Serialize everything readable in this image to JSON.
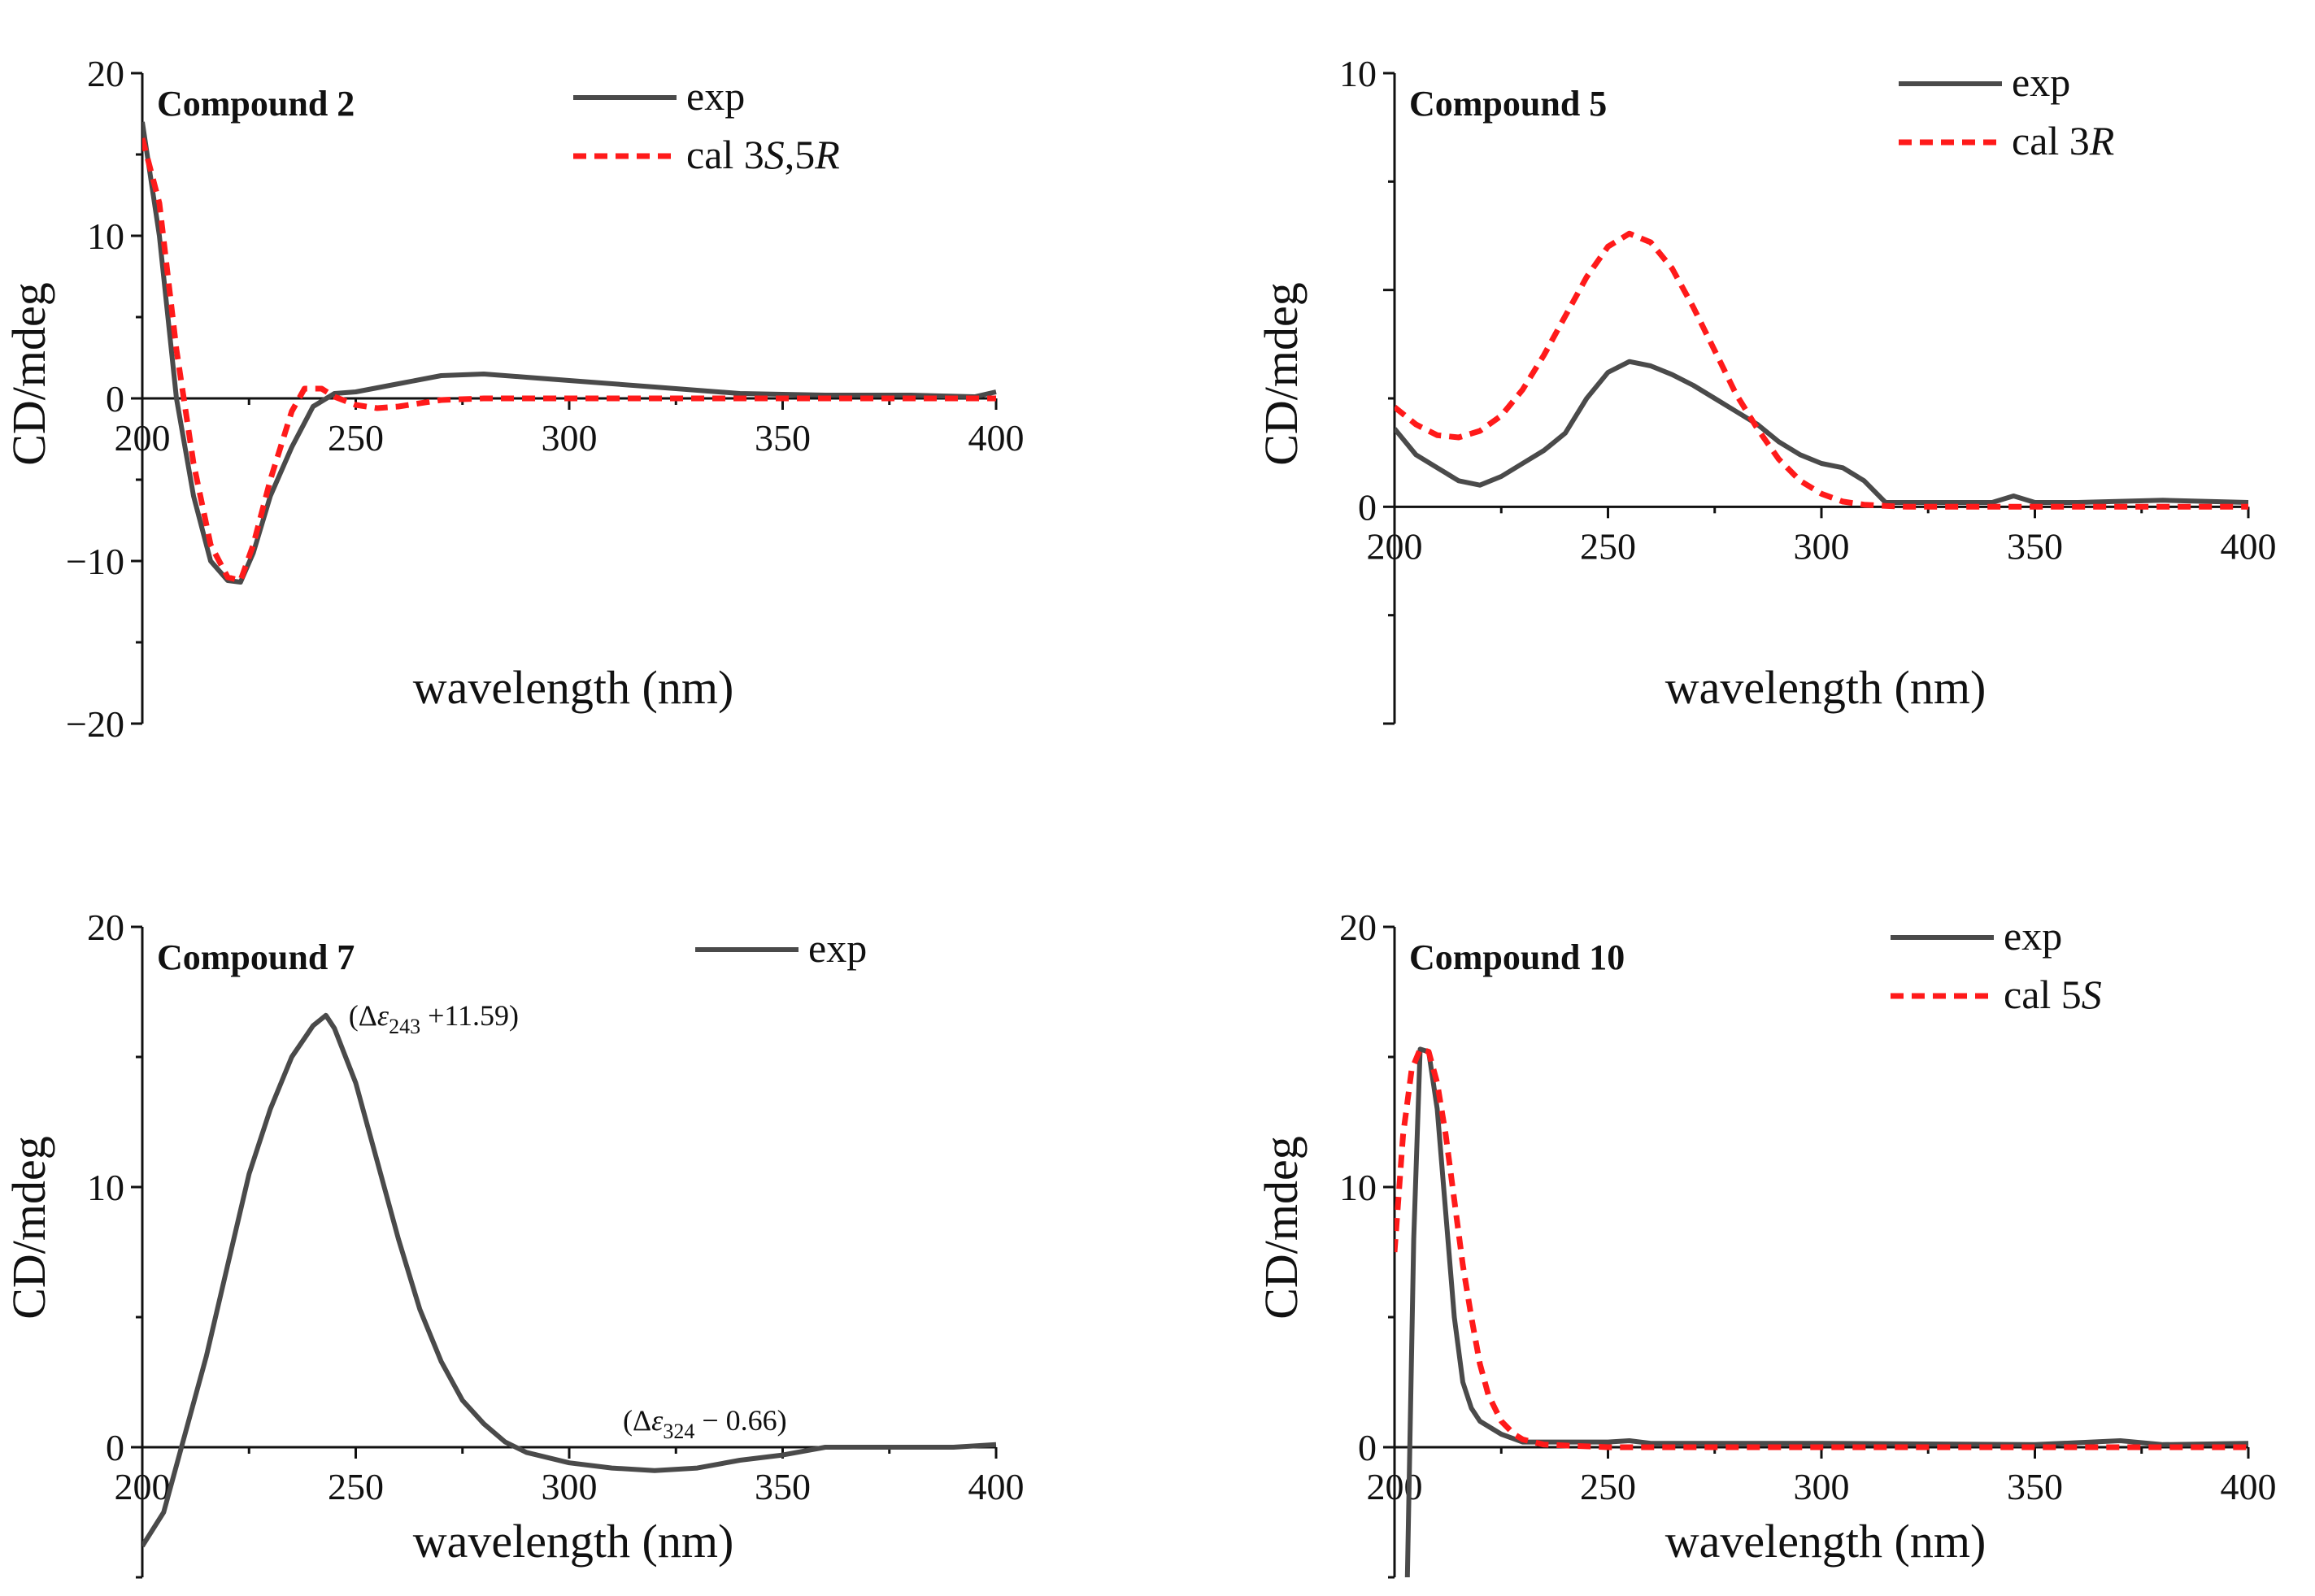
{
  "colors": {
    "exp": "#4a4a4a",
    "cal": "#ff1a1a",
    "axis": "#111111"
  },
  "chart_data": [
    {
      "type": "line",
      "title": "Compound 2",
      "xlabel": "wavelength (nm)",
      "ylabel": "CD/mdeg",
      "xlim": [
        200,
        400
      ],
      "ylim": [
        -20,
        20
      ],
      "xticks": [
        "200",
        "250",
        "300",
        "350",
        "400"
      ],
      "yticks": [
        "20",
        "10",
        "0",
        "−10",
        "−20"
      ],
      "legend": [
        {
          "style": "solid",
          "prefix": "exp",
          "italic_parts": []
        },
        {
          "style": "dashed",
          "prefix": "cal 3",
          "parts": [
            "S",
            ",5",
            "R"
          ]
        }
      ],
      "series": [
        {
          "name": "exp",
          "style": "solid",
          "x": [
            200,
            204,
            208,
            212,
            216,
            220,
            223,
            226,
            230,
            235,
            240,
            245,
            250,
            260,
            270,
            280,
            290,
            300,
            320,
            340,
            360,
            380,
            395,
            400
          ],
          "y": [
            17,
            10,
            0,
            -6,
            -10,
            -11.2,
            -11.3,
            -9.5,
            -6,
            -3,
            -0.5,
            0.3,
            0.4,
            0.9,
            1.4,
            1.5,
            1.3,
            1.1,
            0.7,
            0.3,
            0.2,
            0.2,
            0.1,
            0.4
          ]
        },
        {
          "name": "cal 3S,5R",
          "style": "dashed",
          "x": [
            200,
            204,
            208,
            212,
            216,
            220,
            223,
            226,
            230,
            235,
            238,
            242,
            245,
            250,
            255,
            260,
            270,
            280,
            300,
            350,
            400
          ],
          "y": [
            16,
            12,
            3,
            -4,
            -9,
            -11,
            -11.2,
            -9,
            -5,
            -0.8,
            0.6,
            0.6,
            0.1,
            -0.4,
            -0.6,
            -0.5,
            -0.1,
            0,
            0,
            0,
            0
          ]
        }
      ],
      "annotations": []
    },
    {
      "type": "line",
      "title": "Compound 5",
      "xlabel": "wavelength (nm)",
      "ylabel": "CD/mdeg",
      "xlim": [
        200,
        400
      ],
      "ylim": [
        -5,
        10
      ],
      "xticks": [
        "200",
        "250",
        "300",
        "350",
        "400"
      ],
      "yticks": [
        "10",
        "0"
      ],
      "legend": [
        {
          "style": "solid",
          "prefix": "exp",
          "italic_parts": []
        },
        {
          "style": "dashed",
          "prefix": "cal 3",
          "parts": [
            "R"
          ]
        }
      ],
      "series": [
        {
          "name": "exp",
          "style": "solid",
          "x": [
            200,
            205,
            210,
            215,
            220,
            225,
            230,
            235,
            240,
            245,
            250,
            255,
            260,
            265,
            270,
            275,
            280,
            285,
            290,
            295,
            300,
            305,
            310,
            315,
            320,
            330,
            340,
            345,
            350,
            360,
            380,
            400
          ],
          "y": [
            1.8,
            1.2,
            0.9,
            0.6,
            0.5,
            0.7,
            1.0,
            1.3,
            1.7,
            2.5,
            3.1,
            3.35,
            3.25,
            3.05,
            2.8,
            2.5,
            2.2,
            1.9,
            1.5,
            1.2,
            1.0,
            0.9,
            0.6,
            0.1,
            0.1,
            0.1,
            0.1,
            0.25,
            0.1,
            0.1,
            0.15,
            0.1
          ]
        },
        {
          "name": "cal 3R",
          "style": "dashed",
          "x": [
            200,
            205,
            210,
            215,
            220,
            225,
            230,
            235,
            240,
            245,
            250,
            255,
            260,
            265,
            270,
            275,
            280,
            285,
            290,
            295,
            300,
            305,
            310,
            315,
            320,
            340,
            360,
            400
          ],
          "y": [
            2.3,
            1.9,
            1.65,
            1.6,
            1.75,
            2.1,
            2.7,
            3.5,
            4.4,
            5.3,
            6.0,
            6.3,
            6.1,
            5.5,
            4.6,
            3.6,
            2.6,
            1.8,
            1.1,
            0.6,
            0.3,
            0.12,
            0.05,
            0.02,
            0,
            0,
            0,
            0
          ]
        }
      ],
      "annotations": []
    },
    {
      "type": "line",
      "title": "Compound 7",
      "xlabel": "wavelength (nm)",
      "ylabel": "CD/mdeg",
      "xlim": [
        200,
        400
      ],
      "ylim": [
        -5,
        20
      ],
      "xticks": [
        "200",
        "250",
        "300",
        "350",
        "400"
      ],
      "yticks": [
        "20",
        "10",
        "0"
      ],
      "legend": [
        {
          "style": "solid",
          "prefix": "exp",
          "italic_parts": []
        }
      ],
      "series": [
        {
          "name": "exp",
          "style": "solid",
          "x": [
            200,
            205,
            210,
            215,
            220,
            225,
            230,
            235,
            240,
            243,
            245,
            250,
            255,
            260,
            265,
            270,
            275,
            280,
            285,
            290,
            300,
            310,
            320,
            330,
            340,
            350,
            360,
            370,
            380,
            390,
            400
          ],
          "y": [
            -3.8,
            -2.5,
            0.5,
            3.5,
            7,
            10.5,
            13,
            15,
            16.2,
            16.6,
            16.1,
            14,
            11,
            8,
            5.3,
            3.3,
            1.8,
            0.9,
            0.2,
            -0.2,
            -0.6,
            -0.8,
            -0.9,
            -0.8,
            -0.5,
            -0.3,
            0,
            0,
            0,
            0,
            0.1
          ]
        }
      ],
      "annotations": [
        {
          "pre": "(Δ",
          "sym": "ε",
          "sub": "243",
          "post": " +11.59)",
          "x": 243,
          "y": 16.6,
          "anchor": "peak"
        },
        {
          "pre": "(Δ",
          "sym": "ε",
          "sub": "324",
          "post": " − 0.66)",
          "x": 324,
          "y": -0.9,
          "anchor": "trough"
        }
      ]
    },
    {
      "type": "line",
      "title": "Compound 10",
      "xlabel": "wavelength (nm)",
      "ylabel": "CD/mdeg",
      "xlim": [
        200,
        400
      ],
      "ylim": [
        -5,
        20
      ],
      "xticks": [
        "200",
        "250",
        "300",
        "350",
        "400"
      ],
      "yticks": [
        "20",
        "10",
        "0"
      ],
      "legend": [
        {
          "style": "solid",
          "prefix": "exp",
          "italic_parts": []
        },
        {
          "style": "dashed",
          "prefix": "cal 5",
          "parts": [
            "S"
          ]
        }
      ],
      "series": [
        {
          "name": "exp",
          "style": "solid",
          "x": [
            203,
            204.5,
            206,
            208,
            210,
            212,
            214,
            216,
            218,
            220,
            225,
            230,
            250,
            255,
            260,
            300,
            350,
            370,
            380,
            400
          ],
          "y": [
            -5,
            8,
            15.3,
            15.2,
            13,
            9,
            5,
            2.5,
            1.5,
            1.0,
            0.5,
            0.2,
            0.2,
            0.25,
            0.15,
            0.15,
            0.1,
            0.25,
            0.1,
            0.15
          ]
        },
        {
          "name": "cal 5S",
          "style": "dashed",
          "x": [
            200,
            202,
            204,
            206,
            208,
            210,
            212,
            214,
            216,
            218,
            220,
            222,
            225,
            228,
            230,
            235,
            250,
            300,
            350,
            400
          ],
          "y": [
            7.5,
            12,
            14.5,
            15.3,
            15.2,
            14,
            12,
            9.5,
            7,
            5,
            3.2,
            2,
            1,
            0.5,
            0.3,
            0.1,
            0,
            0,
            0,
            0
          ]
        }
      ],
      "annotations": []
    }
  ]
}
